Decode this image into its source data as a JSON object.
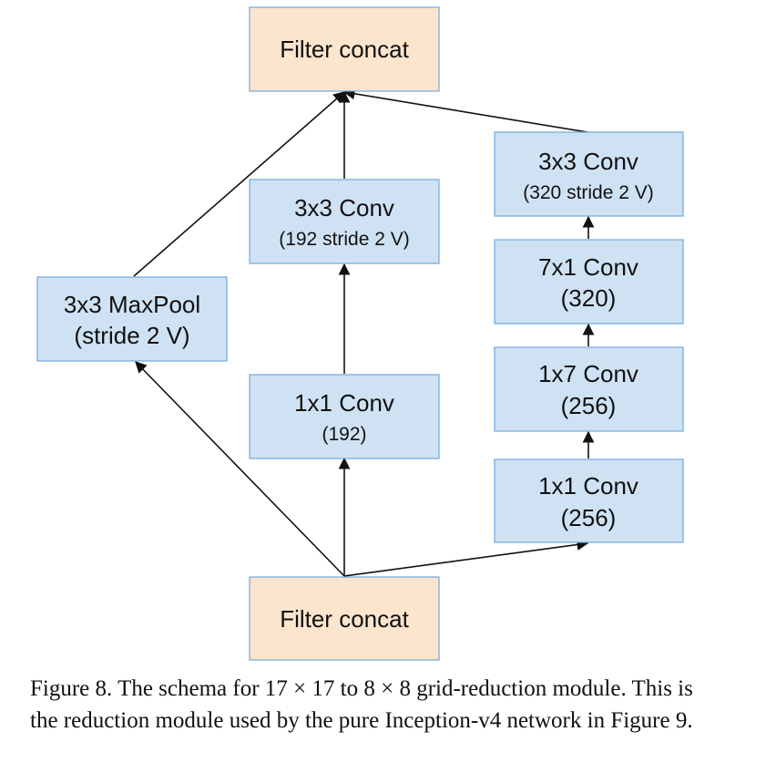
{
  "diagram": {
    "nodes": {
      "concat_top": {
        "label": "Filter concat"
      },
      "concat_bottom": {
        "label": "Filter concat"
      },
      "maxpool": {
        "label": "3x3 MaxPool",
        "sub": "(stride 2 V)"
      },
      "mid_conv3": {
        "label": "3x3 Conv",
        "sub": "(192 stride 2 V)"
      },
      "mid_conv1": {
        "label": "1x1 Conv",
        "sub": "(192)"
      },
      "right_conv3": {
        "label": "3x3 Conv",
        "sub": "(320 stride 2 V)"
      },
      "right_conv71": {
        "label": "7x1 Conv",
        "sub": "(320)"
      },
      "right_conv17": {
        "label": "1x7 Conv",
        "sub": "(256)"
      },
      "right_conv1": {
        "label": "1x1 Conv",
        "sub": "(256)"
      }
    },
    "colors": {
      "conv_fill": "#cfe2f3",
      "concat_fill": "#fce5cd",
      "border": "#6fa8dc",
      "edge": "#111111"
    }
  },
  "caption": {
    "text": "Figure 8. The schema for 17 × 17 to 8 × 8 grid-reduction module. This is the reduction module used by the pure Inception-v4 network in Figure 9."
  }
}
